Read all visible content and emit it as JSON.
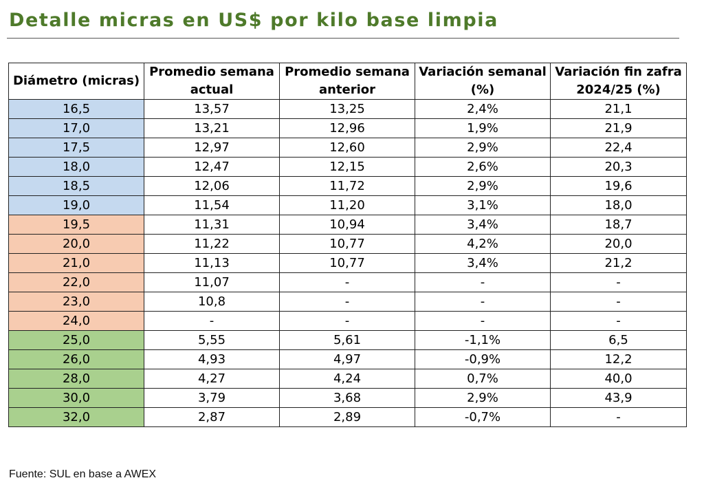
{
  "title": "Detalle micras en US$ por kilo base limpia",
  "table": {
    "headers": [
      "Diámetro (micras)",
      "Promedio semana actual",
      "Promedio semana anterior",
      "Variación semanal (%)",
      "Variación fin zafra 2024/25 (%)"
    ],
    "rows": [
      {
        "diametro": "16,5",
        "actual": "13,57",
        "anterior": "13,25",
        "var_semanal": "2,4%",
        "var_zafra": "21,1",
        "group": "blue"
      },
      {
        "diametro": "17,0",
        "actual": "13,21",
        "anterior": "12,96",
        "var_semanal": "1,9%",
        "var_zafra": "21,9",
        "group": "blue"
      },
      {
        "diametro": "17,5",
        "actual": "12,97",
        "anterior": "12,60",
        "var_semanal": "2,9%",
        "var_zafra": "22,4",
        "group": "blue"
      },
      {
        "diametro": "18,0",
        "actual": "12,47",
        "anterior": "12,15",
        "var_semanal": "2,6%",
        "var_zafra": "20,3",
        "group": "blue"
      },
      {
        "diametro": "18,5",
        "actual": "12,06",
        "anterior": "11,72",
        "var_semanal": "2,9%",
        "var_zafra": "19,6",
        "group": "blue"
      },
      {
        "diametro": "19,0",
        "actual": "11,54",
        "anterior": "11,20",
        "var_semanal": "3,1%",
        "var_zafra": "18,0",
        "group": "blue"
      },
      {
        "diametro": "19,5",
        "actual": "11,31",
        "anterior": "10,94",
        "var_semanal": "3,4%",
        "var_zafra": "18,7",
        "group": "orange"
      },
      {
        "diametro": "20,0",
        "actual": "11,22",
        "anterior": "10,77",
        "var_semanal": "4,2%",
        "var_zafra": "20,0",
        "group": "orange"
      },
      {
        "diametro": "21,0",
        "actual": "11,13",
        "anterior": "10,77",
        "var_semanal": "3,4%",
        "var_zafra": "21,2",
        "group": "orange"
      },
      {
        "diametro": "22,0",
        "actual": "11,07",
        "anterior": "-",
        "var_semanal": "-",
        "var_zafra": "-",
        "group": "orange"
      },
      {
        "diametro": "23,0",
        "actual": "10,8",
        "anterior": "-",
        "var_semanal": "-",
        "var_zafra": "-",
        "group": "orange"
      },
      {
        "diametro": "24,0",
        "actual": "-",
        "anterior": "-",
        "var_semanal": "-",
        "var_zafra": "-",
        "group": "orange"
      },
      {
        "diametro": "25,0",
        "actual": "5,55",
        "anterior": "5,61",
        "var_semanal": "-1,1%",
        "var_zafra": "6,5",
        "group": "green"
      },
      {
        "diametro": "26,0",
        "actual": "4,93",
        "anterior": "4,97",
        "var_semanal": "-0,9%",
        "var_zafra": "12,2",
        "group": "green"
      },
      {
        "diametro": "28,0",
        "actual": "4,27",
        "anterior": "4,24",
        "var_semanal": "0,7%",
        "var_zafra": "40,0",
        "group": "green"
      },
      {
        "diametro": "30,0",
        "actual": "3,79",
        "anterior": "3,68",
        "var_semanal": "2,9%",
        "var_zafra": "43,9",
        "group": "green"
      },
      {
        "diametro": "32,0",
        "actual": "2,87",
        "anterior": "2,89",
        "var_semanal": "-0,7%",
        "var_zafra": "-",
        "group": "green"
      }
    ]
  },
  "colors": {
    "title": "#4e7a2a",
    "blue": "#c5d9ef",
    "orange": "#f7cbb1",
    "green": "#a9d08e"
  },
  "source": "Fuente: SUL en base a AWEX"
}
